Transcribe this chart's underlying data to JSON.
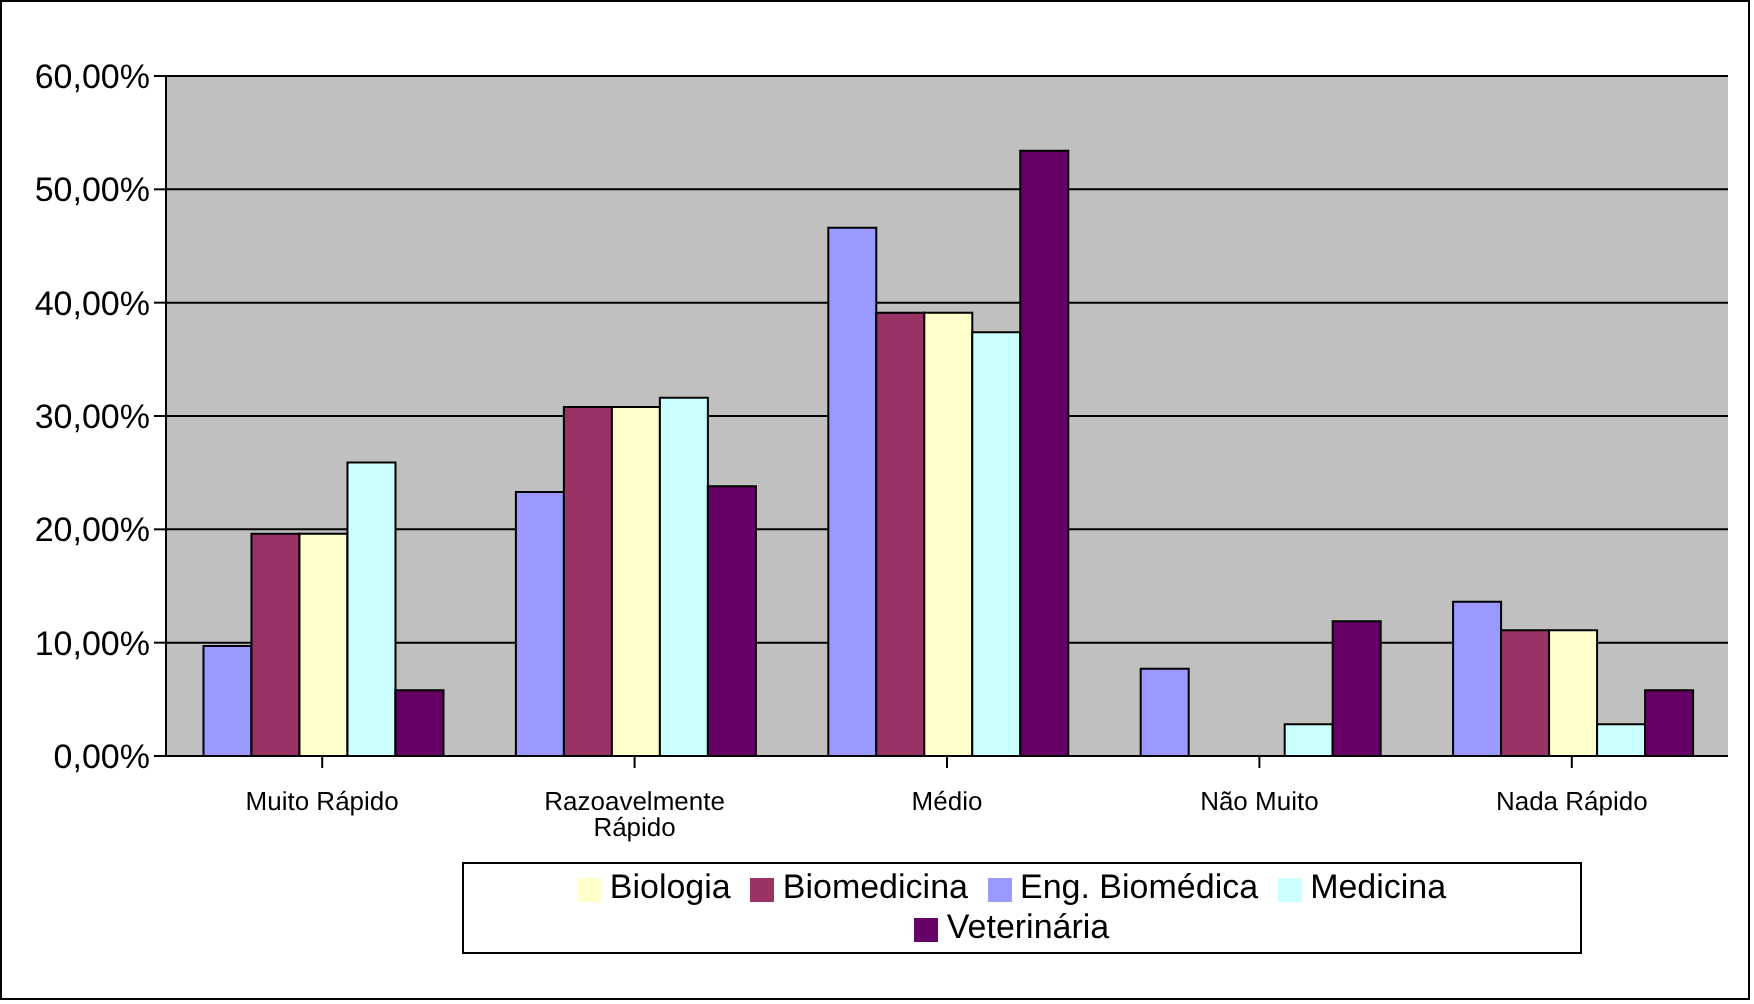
{
  "chart_data": {
    "type": "bar",
    "categories": [
      "Muito Rápido",
      "Razoavelmente Rápido",
      "Médio",
      "Não Muito",
      "Nada Rápido"
    ],
    "series": [
      {
        "name": "Eng. Biomédica",
        "color": "#9999ff",
        "values": [
          9.7,
          23.3,
          46.6,
          7.7,
          13.6
        ]
      },
      {
        "name": "Biomedicina",
        "color": "#993366",
        "values": [
          19.6,
          30.8,
          39.1,
          0,
          11.1
        ]
      },
      {
        "name": "Biologia",
        "color": "#ffffcc",
        "values": [
          19.6,
          30.8,
          39.1,
          0,
          11.1
        ]
      },
      {
        "name": "Medicina",
        "color": "#ccffff",
        "values": [
          25.9,
          31.6,
          37.4,
          2.8,
          2.8
        ]
      },
      {
        "name": "Veterinária",
        "color": "#660066",
        "values": [
          5.8,
          23.8,
          53.4,
          11.9,
          5.8
        ]
      }
    ],
    "ylim": [
      0,
      60
    ],
    "yticks": [
      {
        "value": 0,
        "label": "0,00%"
      },
      {
        "value": 10,
        "label": "10,00%"
      },
      {
        "value": 20,
        "label": "20,00%"
      },
      {
        "value": 30,
        "label": "30,00%"
      },
      {
        "value": 40,
        "label": "40,00%"
      },
      {
        "value": 50,
        "label": "50,00%"
      },
      {
        "value": 60,
        "label": "60,00%"
      }
    ],
    "grid": "y",
    "legend": "bottom"
  }
}
